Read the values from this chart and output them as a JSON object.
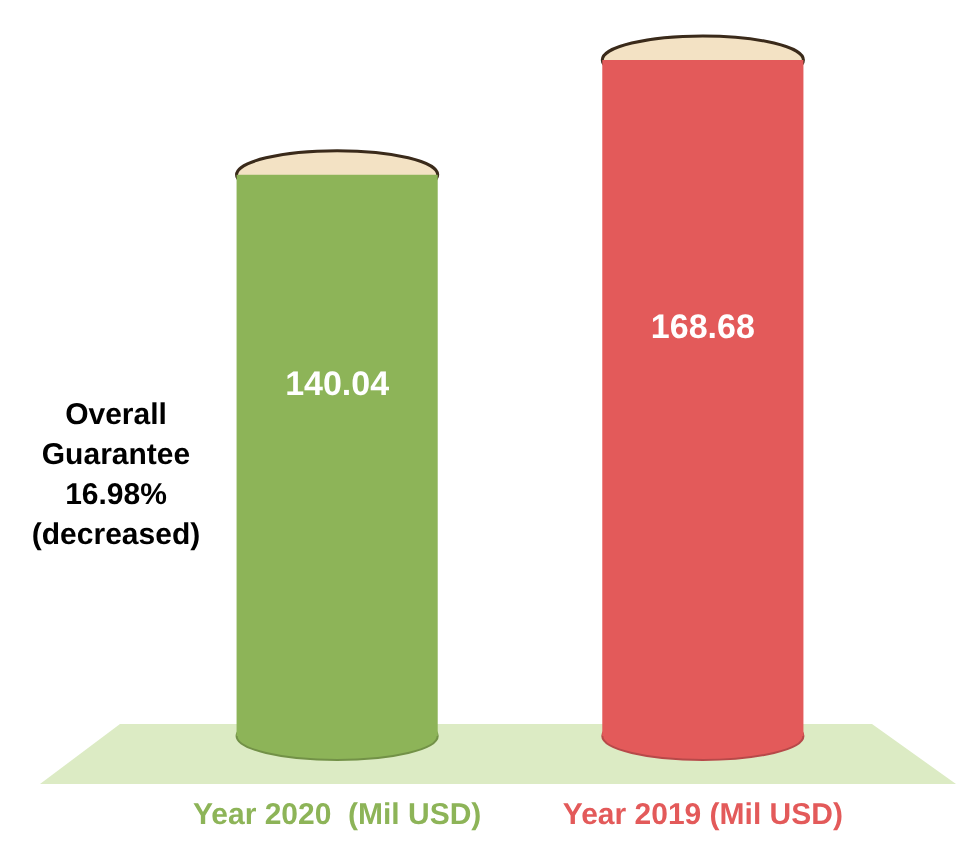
{
  "chart_data": {
    "type": "bar",
    "categories": [
      "Year 2020  (Mil USD)",
      "Year 2019 (Mil USD)"
    ],
    "values": [
      140.04,
      168.68
    ],
    "colors": [
      "#8db458",
      "#e35a5a"
    ],
    "data_labels": true,
    "tick_labels": "x",
    "annotations": [
      "Overall Guarantee 16.98% (decreased)"
    ]
  }
}
